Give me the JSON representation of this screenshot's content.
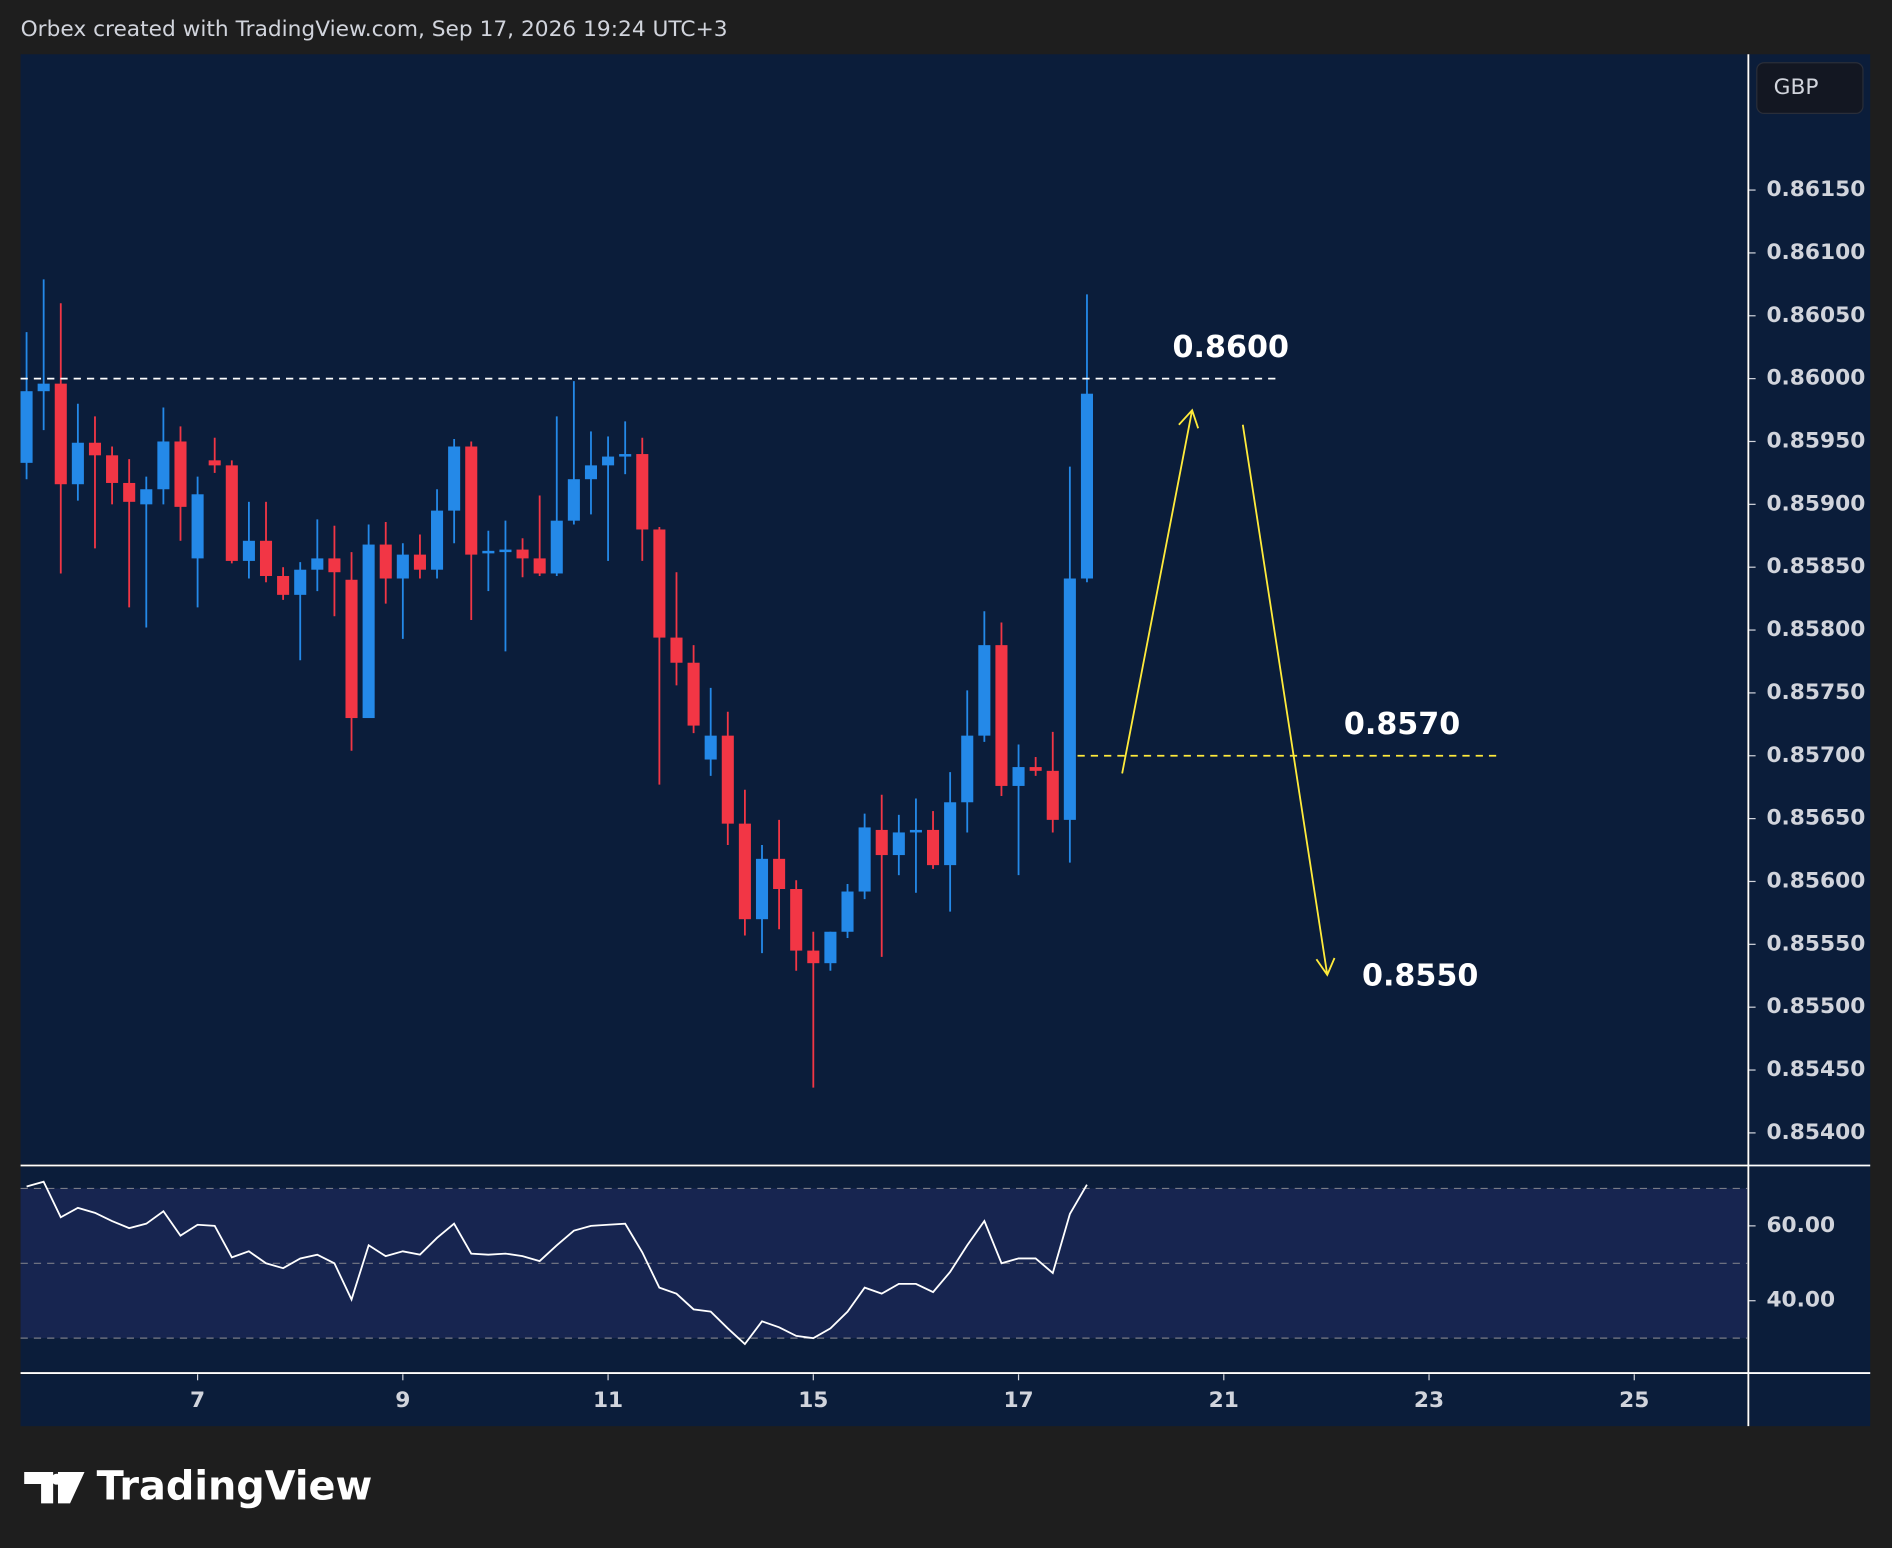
{
  "header": {
    "text": "Orbex created with TradingView.com, Sep 17, 2026 19:24 UTC+3"
  },
  "currency": "GBP",
  "footer": {
    "logo": "TradingView"
  },
  "chart_data": [
    {
      "type": "candlestick",
      "up_color": "#2489e8",
      "down_color": "#f23645",
      "open": [
        0.85933,
        0.8599,
        0.85996,
        0.85916,
        0.85949,
        0.85939,
        0.85917,
        0.859,
        0.85912,
        0.8595,
        0.85857,
        0.85935,
        0.85931,
        0.85855,
        0.85871,
        0.85843,
        0.85828,
        0.85848,
        0.85857,
        0.8584,
        0.8573,
        0.85868,
        0.85841,
        0.8586,
        0.85848,
        0.85895,
        0.85946,
        0.85861,
        0.85862,
        0.85864,
        0.85857,
        0.85845,
        0.85887,
        0.8592,
        0.85931,
        0.85938,
        0.8594,
        0.8588,
        0.85794,
        0.85774,
        0.85697,
        0.85716,
        0.85646,
        0.8557,
        0.85618,
        0.85594,
        0.85545,
        0.85535,
        0.8556,
        0.85592,
        0.85641,
        0.85621,
        0.85639,
        0.85641,
        0.85613,
        0.85663,
        0.85716,
        0.85788,
        0.85676,
        0.85691,
        0.85688,
        0.85649,
        0.85841
      ],
      "high": [
        0.86037,
        0.86079,
        0.8606,
        0.8598,
        0.8597,
        0.85946,
        0.85936,
        0.85922,
        0.85977,
        0.85962,
        0.85922,
        0.85953,
        0.85935,
        0.85902,
        0.85902,
        0.8585,
        0.85854,
        0.85888,
        0.85883,
        0.85862,
        0.85884,
        0.85886,
        0.85869,
        0.85876,
        0.85912,
        0.85952,
        0.8595,
        0.85879,
        0.85887,
        0.85873,
        0.85907,
        0.8597,
        0.85998,
        0.85958,
        0.85954,
        0.85966,
        0.85953,
        0.85882,
        0.85846,
        0.85788,
        0.85754,
        0.85735,
        0.85673,
        0.85629,
        0.85649,
        0.85601,
        0.8556,
        0.8556,
        0.85598,
        0.85654,
        0.85669,
        0.85653,
        0.85666,
        0.85656,
        0.85687,
        0.85752,
        0.85815,
        0.85806,
        0.85709,
        0.85699,
        0.85719,
        0.8593,
        0.86067
      ],
      "low": [
        0.8592,
        0.85959,
        0.85845,
        0.85903,
        0.85865,
        0.859,
        0.85818,
        0.85802,
        0.859,
        0.85871,
        0.85818,
        0.85925,
        0.85853,
        0.85841,
        0.85838,
        0.85824,
        0.85776,
        0.85831,
        0.85811,
        0.85704,
        0.8573,
        0.85821,
        0.85793,
        0.85841,
        0.85841,
        0.85869,
        0.85808,
        0.85831,
        0.85783,
        0.85842,
        0.85843,
        0.85843,
        0.85884,
        0.85892,
        0.85855,
        0.85924,
        0.85855,
        0.85677,
        0.85756,
        0.85718,
        0.85684,
        0.85629,
        0.85557,
        0.85543,
        0.85562,
        0.85529,
        0.85436,
        0.85529,
        0.85555,
        0.85586,
        0.8554,
        0.85605,
        0.85591,
        0.8561,
        0.85576,
        0.85639,
        0.85711,
        0.85668,
        0.85605,
        0.85684,
        0.85639,
        0.85615,
        0.85838
      ],
      "close": [
        0.8599,
        0.85996,
        0.85916,
        0.85949,
        0.85939,
        0.85917,
        0.85902,
        0.85912,
        0.8595,
        0.85898,
        0.85908,
        0.85931,
        0.85855,
        0.85871,
        0.85843,
        0.85828,
        0.85848,
        0.85857,
        0.85846,
        0.8573,
        0.85868,
        0.85841,
        0.8586,
        0.85848,
        0.85895,
        0.85946,
        0.8586,
        0.85863,
        0.85864,
        0.85857,
        0.85845,
        0.85887,
        0.8592,
        0.85931,
        0.85938,
        0.8594,
        0.8588,
        0.85794,
        0.85774,
        0.85724,
        0.85716,
        0.85646,
        0.8557,
        0.85618,
        0.85594,
        0.85545,
        0.85535,
        0.8556,
        0.85592,
        0.85643,
        0.85621,
        0.85639,
        0.85641,
        0.85613,
        0.85663,
        0.85716,
        0.85788,
        0.85676,
        0.85691,
        0.85688,
        0.85649,
        0.85841,
        0.85988
      ],
      "ylim": [
        0.85375,
        0.86258
      ],
      "yticks": [
        {
          "value": 0.854,
          "label": "0.85400"
        },
        {
          "value": 0.8545,
          "label": "0.85450"
        },
        {
          "value": 0.855,
          "label": "0.85500"
        },
        {
          "value": 0.8555,
          "label": "0.85550"
        },
        {
          "value": 0.856,
          "label": "0.85600"
        },
        {
          "value": 0.8565,
          "label": "0.85650"
        },
        {
          "value": 0.857,
          "label": "0.85700"
        },
        {
          "value": 0.8575,
          "label": "0.85750"
        },
        {
          "value": 0.858,
          "label": "0.85800"
        },
        {
          "value": 0.8585,
          "label": "0.85850"
        },
        {
          "value": 0.859,
          "label": "0.85900"
        },
        {
          "value": 0.8595,
          "label": "0.85950"
        },
        {
          "value": 0.86,
          "label": "0.86000"
        },
        {
          "value": 0.8605,
          "label": "0.86050"
        },
        {
          "value": 0.861,
          "label": "0.86100"
        },
        {
          "value": 0.8615,
          "label": "0.86150"
        }
      ],
      "levels": [
        {
          "value": 0.86,
          "label": "0.8600",
          "color": "#ffffff",
          "line": true
        },
        {
          "value": 0.857,
          "label": "0.8570",
          "color": "#ffeb3b",
          "line": true
        },
        {
          "value": 0.855,
          "label": "0.8550",
          "color": "#ffeb3b",
          "line": false
        }
      ]
    },
    {
      "type": "line",
      "color": "#ffffff",
      "values": [
        70.5,
        71.8,
        62.3,
        64.8,
        63.5,
        61.3,
        59.4,
        60.6,
        63.9,
        57.4,
        60.3,
        60,
        51.6,
        53.2,
        50,
        48.7,
        51.3,
        52.3,
        50,
        40.3,
        54.8,
        51.9,
        53.2,
        52.3,
        56.8,
        60.6,
        52.6,
        52.3,
        52.6,
        51.9,
        50.6,
        54.8,
        58.7,
        60,
        60.3,
        60.6,
        52.9,
        43.5,
        41.9,
        37.7,
        37.1,
        32.6,
        28.4,
        34.5,
        32.9,
        30.6,
        30,
        32.6,
        37.1,
        43.5,
        41.9,
        44.5,
        44.5,
        42.3,
        47.7,
        54.8,
        61.3,
        50,
        51.3,
        51.3,
        47.4,
        63.2,
        71
      ],
      "ylim": [
        21.0,
        75.8
      ],
      "yticks": [
        {
          "value": 40,
          "label": "40.00"
        },
        {
          "value": 60,
          "label": "60.00"
        }
      ],
      "levels": [
        30,
        50,
        70
      ],
      "xlim": [
        -0.35,
        100.6
      ],
      "xticks": [
        {
          "value": 10,
          "label": "7"
        },
        {
          "value": 22,
          "label": "9"
        },
        {
          "value": 34,
          "label": "11"
        },
        {
          "value": 46,
          "label": "15"
        },
        {
          "value": 58,
          "label": "17"
        },
        {
          "value": 70,
          "label": "21"
        },
        {
          "value": 82,
          "label": "23"
        },
        {
          "value": 94,
          "label": "25"
        }
      ]
    }
  ]
}
